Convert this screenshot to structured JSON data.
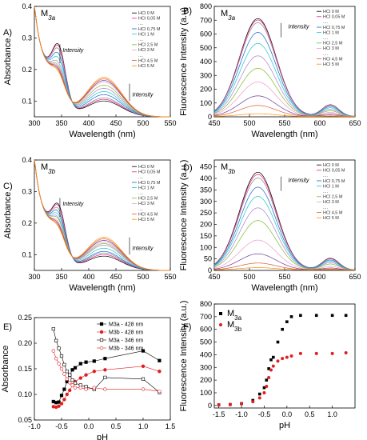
{
  "chart_data": [
    {
      "id": "A",
      "type": "line",
      "panel_label": "A)",
      "title": "M3a",
      "xlabel": "Wavelength (nm)",
      "ylabel": "Absorbance",
      "xlim": [
        300,
        550
      ],
      "ylim": [
        0.05,
        0.4
      ],
      "xticks": [
        300,
        350,
        400,
        450,
        500,
        550
      ],
      "yticks": [
        0.1,
        0.2,
        0.3,
        0.4
      ],
      "legend": [
        "HCl 0 M",
        "HCl 0,05 M",
        "....",
        "HCl 0,75 M",
        "HCl 1 M",
        "....",
        "HCl 2,5 M",
        "HCl 3 M",
        "....",
        "HCl 4,5 M",
        "HCl 5 M"
      ],
      "annotations": [
        "Intensity",
        "Intensity"
      ],
      "series_shape": "absorbance",
      "peak346": [
        0.24,
        0.235,
        0.225,
        0.21,
        0.195,
        0.18,
        0.17,
        0.165,
        0.16,
        0.155,
        0.15
      ],
      "peak428": [
        0.1,
        0.105,
        0.11,
        0.12,
        0.13,
        0.14,
        0.15,
        0.16,
        0.165,
        0.17,
        0.175
      ]
    },
    {
      "id": "B",
      "type": "line",
      "panel_label": "B)",
      "title": "M3a",
      "xlabel": "Wavelength (nm)",
      "ylabel": "Fluorescence Intensity (a.u)",
      "xlim": [
        450,
        650
      ],
      "ylim": [
        0,
        800
      ],
      "xticks": [
        450,
        500,
        550,
        600,
        650
      ],
      "yticks": [
        0,
        100,
        200,
        300,
        400,
        500,
        600,
        700,
        800
      ],
      "legend": [
        "HCl 0 M",
        "HCl 0,05 M",
        "....",
        "HCl 0,75 M",
        "HCl 1 M",
        "....",
        "HCl 2,5 M",
        "HCl 3 M",
        "....",
        "HCl 4,5 M",
        "HCl 5 M"
      ],
      "annotations": [
        "Intensity"
      ],
      "series_shape": "emission",
      "peaks": [
        710,
        700,
        680,
        610,
        530,
        440,
        350,
        250,
        150,
        80,
        20
      ]
    },
    {
      "id": "C",
      "type": "line",
      "panel_label": "C)",
      "title": "M3b",
      "xlabel": "Wavelength (nm)",
      "ylabel": "Absorbance",
      "xlim": [
        300,
        550
      ],
      "ylim": [
        0.05,
        0.4
      ],
      "xticks": [
        300,
        350,
        400,
        450,
        500,
        550
      ],
      "yticks": [
        0.1,
        0.2,
        0.3,
        0.4
      ],
      "legend": [
        "HCl 0 M",
        "HCl 0,05 M",
        "....",
        "HCl 0,75 M",
        "HCl 1 M",
        "....",
        "HCl 2,5 M",
        "HCl 3 M",
        "....",
        "HCl 4,5 M",
        "HCl 5 M"
      ],
      "annotations": [
        "Intensity",
        "Intensity"
      ],
      "series_shape": "absorbance",
      "peak346": [
        0.22,
        0.215,
        0.205,
        0.195,
        0.185,
        0.175,
        0.17,
        0.16,
        0.155,
        0.15,
        0.145
      ],
      "peak428": [
        0.095,
        0.1,
        0.105,
        0.11,
        0.12,
        0.13,
        0.135,
        0.14,
        0.145,
        0.15,
        0.155
      ]
    },
    {
      "id": "D",
      "type": "line",
      "panel_label": "D)",
      "title": "M3b",
      "xlabel": "Wavelength (nm)",
      "ylabel": "Fluorescence Intensity (a.u.)",
      "xlim": [
        450,
        650
      ],
      "ylim": [
        0,
        480
      ],
      "xticks": [
        450,
        500,
        550,
        600,
        650
      ],
      "yticks": [
        0,
        50,
        100,
        150,
        200,
        250,
        300,
        350,
        400,
        450
      ],
      "legend": [
        "HCl 0 M",
        "HCl 0,05 M",
        "....",
        "HCl 0,75 M",
        "HCl 1 M",
        "....",
        "HCl 2,5 M",
        "HCl 3 M",
        "....",
        "HCl 4,5 M",
        "HCl 5 M"
      ],
      "annotations": [
        "Intensity"
      ],
      "series_shape": "emission",
      "peaks": [
        425,
        415,
        400,
        360,
        320,
        270,
        215,
        130,
        70,
        30,
        10
      ]
    },
    {
      "id": "E",
      "type": "scatter",
      "panel_label": "E)",
      "xlabel": "pH",
      "ylabel": "Absorbance",
      "xlim": [
        -1.0,
        1.5
      ],
      "ylim": [
        0.05,
        0.25
      ],
      "xticks": [
        -1.0,
        -0.5,
        0.0,
        0.5,
        1.0,
        1.5
      ],
      "xtick_labels": [
        "-1.0",
        "-0.5",
        "0.0",
        "0.5",
        "1.0",
        "1.5"
      ],
      "yticks": [
        0.05,
        0.1,
        0.15,
        0.2,
        0.25
      ],
      "ytick_labels": [
        "0.05",
        "0.10",
        "0.15",
        "0.20",
        "0.25"
      ],
      "x": [
        -0.65,
        -0.6,
        -0.55,
        -0.5,
        -0.45,
        -0.4,
        -0.35,
        -0.3,
        -0.25,
        -0.15,
        -0.05,
        0.1,
        0.3,
        1.0,
        1.3
      ],
      "series": [
        {
          "name": "M3a - 428 nm",
          "values": [
            0.086,
            0.084,
            0.085,
            0.098,
            0.11,
            0.125,
            0.138,
            0.148,
            0.152,
            0.16,
            0.163,
            0.165,
            0.17,
            0.185,
            0.166
          ]
        },
        {
          "name": "M3b - 428 nm",
          "values": [
            0.076,
            0.075,
            0.077,
            0.082,
            0.09,
            0.1,
            0.108,
            0.118,
            0.125,
            0.132,
            0.138,
            0.145,
            0.148,
            0.155,
            0.145
          ]
        },
        {
          "name": "M3a - 346 nm",
          "values": [
            0.228,
            0.205,
            0.19,
            0.175,
            0.158,
            0.145,
            0.138,
            0.128,
            0.122,
            0.118,
            0.115,
            0.11,
            0.133,
            0.13,
            0.104
          ]
        },
        {
          "name": "M3b - 346 nm",
          "values": [
            0.185,
            0.17,
            0.16,
            0.15,
            0.14,
            0.13,
            0.123,
            0.118,
            0.113,
            0.113,
            0.11,
            0.113,
            0.11,
            0.11,
            0.106
          ]
        }
      ]
    },
    {
      "id": "F",
      "type": "scatter",
      "panel_label": "F)",
      "xlabel": "pH",
      "ylabel": "Fluorescence Intensity (a.u.)",
      "xlim": [
        -1.6,
        1.5
      ],
      "ylim": [
        -20,
        800
      ],
      "xticks": [
        -1.5,
        -1.0,
        -0.5,
        0.0,
        0.5,
        1.0
      ],
      "xtick_labels": [
        "-1.5",
        "-1.0",
        "-0.5",
        "0.0",
        "0.5",
        "1.0"
      ],
      "yticks": [
        0,
        100,
        200,
        300,
        400,
        500,
        600,
        700,
        800
      ],
      "ytick_labels": [
        "0",
        "100",
        "200",
        "300",
        "400",
        "500",
        "600",
        "700",
        "800"
      ],
      "x": [
        -1.5,
        -1.25,
        -1.0,
        -0.75,
        -0.6,
        -0.5,
        -0.45,
        -0.4,
        -0.35,
        -0.3,
        -0.2,
        -0.1,
        0.0,
        0.1,
        0.3,
        0.65,
        1.0,
        1.3
      ],
      "series": [
        {
          "name": "M3a",
          "values": [
            5,
            8,
            15,
            40,
            90,
            140,
            200,
            290,
            360,
            380,
            500,
            600,
            660,
            700,
            710,
            710,
            710,
            710
          ]
        },
        {
          "name": "M3b",
          "values": [
            5,
            6,
            12,
            30,
            60,
            100,
            150,
            220,
            280,
            310,
            350,
            370,
            380,
            390,
            410,
            410,
            410,
            415
          ]
        }
      ]
    }
  ]
}
